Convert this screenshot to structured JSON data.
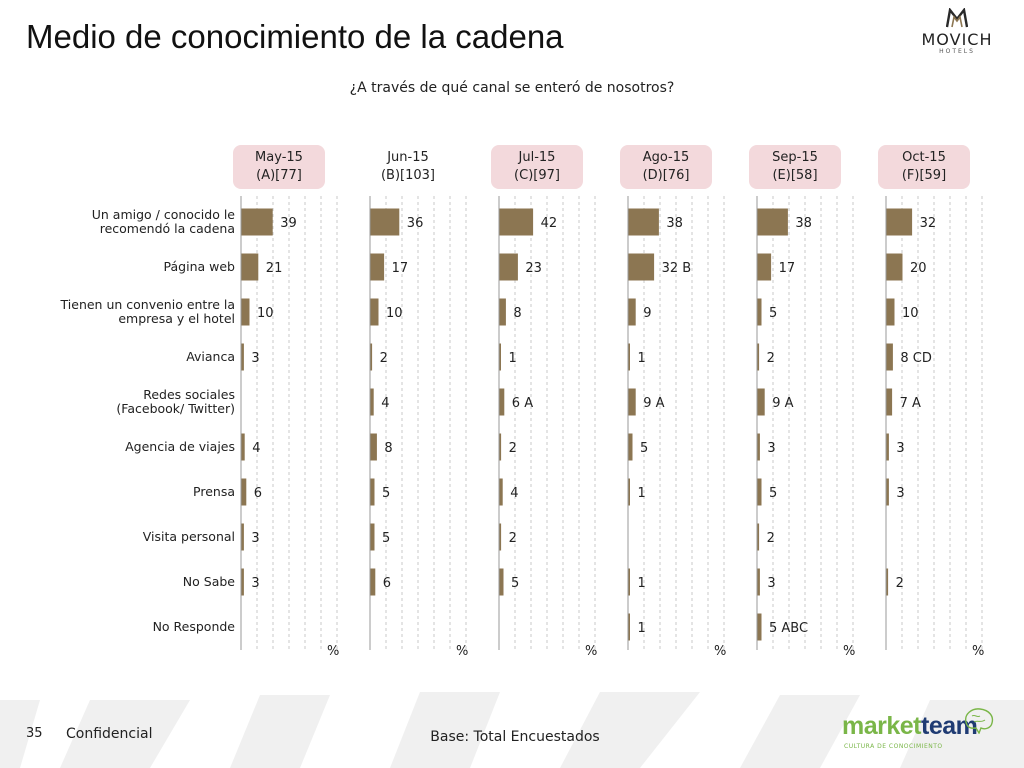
{
  "title": "Medio de conocimiento de la cadena",
  "subtitle": "¿A través de qué canal se enteró de nosotros?",
  "brand": {
    "name": "MOVICH",
    "sub": "HOTELS"
  },
  "footer": {
    "page_number": "35",
    "confidential": "Confidencial",
    "base": "Base: Total Encuestados",
    "logo_part1": "market",
    "logo_part2": "team",
    "logo_sub": "CULTURA DE CONOCIMIENTO"
  },
  "colors": {
    "bar": "#8c7652",
    "highlight": "#f3d9dc",
    "grid": "#c8c8c8"
  },
  "chart_data": {
    "type": "bar",
    "orientation": "horizontal",
    "unit": "%",
    "categories": [
      "Un amigo / conocido le recomendó la cadena",
      "Página web",
      "Tienen un convenio entre la empresa y el hotel",
      "Avianca",
      "Redes sociales (Facebook/ Twitter)",
      "Agencia de viajes",
      "Prensa",
      "Visita personal",
      "No Sabe",
      "No Responde"
    ],
    "category_lines": [
      [
        "Un amigo / conocido le",
        "recomendó la cadena"
      ],
      [
        "Página web"
      ],
      [
        "Tienen un convenio entre la",
        "empresa y el hotel"
      ],
      [
        "Avianca"
      ],
      [
        "Redes sociales",
        "(Facebook/ Twitter)"
      ],
      [
        "Agencia de viajes"
      ],
      [
        "Prensa"
      ],
      [
        "Visita personal"
      ],
      [
        "No Sabe"
      ],
      [
        "No Responde"
      ]
    ],
    "series": [
      {
        "name": "May-15",
        "code": "(A)[77]",
        "highlight": true,
        "values": [
          39,
          21,
          10,
          3,
          null,
          4,
          6,
          3,
          3,
          null
        ],
        "labels": [
          "39",
          "21",
          "10",
          "3",
          "",
          "4",
          "6",
          "3",
          "3",
          ""
        ]
      },
      {
        "name": "Jun-15",
        "code": "(B)[103]",
        "highlight": false,
        "values": [
          36,
          17,
          10,
          2,
          4,
          8,
          5,
          5,
          6,
          null
        ],
        "labels": [
          "36",
          "17",
          "10",
          "2",
          "4",
          "8",
          "5",
          "5",
          "6",
          ""
        ]
      },
      {
        "name": "Jul-15",
        "code": "(C)[97]",
        "highlight": true,
        "values": [
          42,
          23,
          8,
          1,
          6,
          2,
          4,
          2,
          5,
          null
        ],
        "labels": [
          "42",
          "23",
          "8",
          "1",
          "6 A",
          "2",
          "4",
          "2",
          "5",
          ""
        ]
      },
      {
        "name": "Ago-15",
        "code": "(D)[76]",
        "highlight": true,
        "values": [
          38,
          32,
          9,
          1,
          9,
          5,
          1,
          null,
          1,
          1
        ],
        "labels": [
          "38",
          "32 B",
          "9",
          "1",
          "9 A",
          "5",
          "1",
          "",
          "1",
          "1"
        ]
      },
      {
        "name": "Sep-15",
        "code": "(E)[58]",
        "highlight": true,
        "values": [
          38,
          17,
          5,
          2,
          9,
          3,
          5,
          2,
          3,
          5
        ],
        "labels": [
          "38",
          "17",
          "5",
          "2",
          "9 A",
          "3",
          "5",
          "2",
          "3",
          "5 ABC"
        ]
      },
      {
        "name": "Oct-15",
        "code": "(F)[59]",
        "highlight": true,
        "values": [
          32,
          20,
          10,
          8,
          7,
          3,
          3,
          null,
          2,
          null
        ],
        "labels": [
          "32",
          "20",
          "10",
          "8 CD",
          "7 A",
          "3",
          "3",
          "",
          "2",
          ""
        ]
      }
    ],
    "xlim": [
      0,
      100
    ],
    "grid": true,
    "legend": "none"
  }
}
